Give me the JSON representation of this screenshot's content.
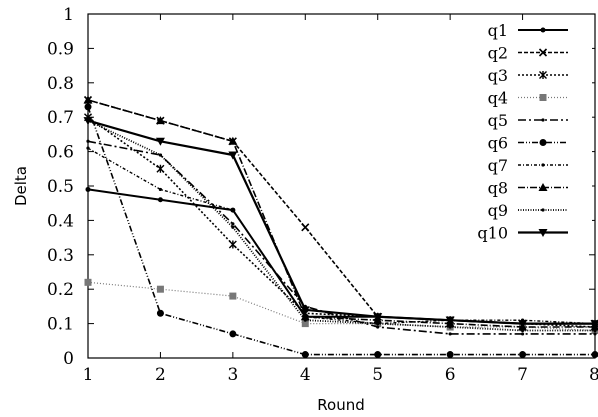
{
  "chart_data": {
    "type": "line",
    "title": "",
    "xlabel": "Round",
    "ylabel": "Delta",
    "x": [
      1,
      2,
      3,
      4,
      5,
      6,
      7,
      8
    ],
    "xlim": [
      1,
      8
    ],
    "ylim": [
      0,
      1
    ],
    "xticks": [
      "1",
      "2",
      "3",
      "4",
      "5",
      "6",
      "7",
      "8"
    ],
    "yticks": [
      "0",
      "0.1",
      "0.2",
      "0.3",
      "0.4",
      "0.5",
      "0.6",
      "0.7",
      "0.8",
      "0.9",
      "1"
    ],
    "grid": false,
    "legend": "top-right",
    "series": [
      {
        "name": "q1",
        "values": [
          0.49,
          0.46,
          0.43,
          0.12,
          0.12,
          0.11,
          0.1,
          0.1
        ],
        "dash": "",
        "width": 2,
        "marker": "dot"
      },
      {
        "name": "q2",
        "values": [
          0.75,
          0.69,
          0.63,
          0.38,
          0.12,
          0.11,
          0.1,
          0.1
        ],
        "dash": "4,2",
        "width": 1.6,
        "marker": "cross"
      },
      {
        "name": "q3",
        "values": [
          0.7,
          0.55,
          0.33,
          0.13,
          0.12,
          0.11,
          0.1,
          0.09
        ],
        "dash": "2,2",
        "width": 1.6,
        "marker": "star"
      },
      {
        "name": "q4",
        "values": [
          0.22,
          0.2,
          0.18,
          0.1,
          0.1,
          0.09,
          0.09,
          0.08
        ],
        "dash": "1,2",
        "width": 1.2,
        "marker": "square",
        "color": "#777777"
      },
      {
        "name": "q5",
        "values": [
          0.63,
          0.59,
          0.39,
          0.15,
          0.09,
          0.07,
          0.07,
          0.07
        ],
        "dash": "8,3,2,3",
        "width": 1.6,
        "marker": "small"
      },
      {
        "name": "q6",
        "values": [
          0.73,
          0.13,
          0.07,
          0.01,
          0.01,
          0.01,
          0.01,
          0.01
        ],
        "dash": "6,2,1,2,1,2",
        "width": 1.6,
        "marker": "circle"
      },
      {
        "name": "q7",
        "values": [
          0.61,
          0.49,
          0.43,
          0.12,
          0.1,
          0.11,
          0.11,
          0.1
        ],
        "dash": "3,2,1,2",
        "width": 1.4,
        "marker": "small"
      },
      {
        "name": "q8",
        "values": [
          0.75,
          0.69,
          0.63,
          0.12,
          0.11,
          0.1,
          0.09,
          0.09
        ],
        "dash": "7,2,1,2",
        "width": 1.6,
        "marker": "triangle"
      },
      {
        "name": "q9",
        "values": [
          0.69,
          0.59,
          0.38,
          0.11,
          0.1,
          0.09,
          0.08,
          0.08
        ],
        "dash": "1,1.5",
        "width": 1.8,
        "marker": "small"
      },
      {
        "name": "q10",
        "values": [
          0.69,
          0.63,
          0.59,
          0.14,
          0.12,
          0.11,
          0.1,
          0.1
        ],
        "dash": "",
        "width": 2.2,
        "marker": "triangle-down"
      }
    ]
  }
}
